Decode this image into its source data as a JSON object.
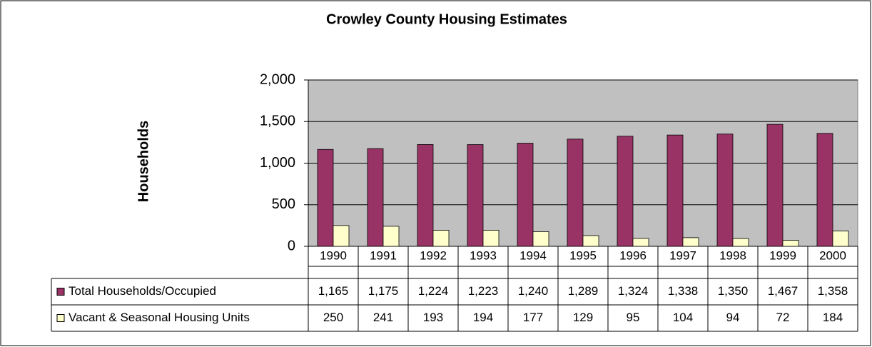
{
  "chart_data": {
    "type": "bar",
    "title": "Crowley County Housing Estimates",
    "y_label": "Households",
    "categories": [
      "1990",
      "1991",
      "1992",
      "1993",
      "1994",
      "1995",
      "1996",
      "1997",
      "1998",
      "1999",
      "2000"
    ],
    "series": [
      {
        "name": "Total Households/Occupied",
        "color": "#993366",
        "values": [
          1165,
          1175,
          1224,
          1223,
          1240,
          1289,
          1324,
          1338,
          1350,
          1467,
          1358
        ],
        "value_labels": [
          "1,165",
          "1,175",
          "1,224",
          "1,223",
          "1,240",
          "1,289",
          "1,324",
          "1,338",
          "1,350",
          "1,467",
          "1,358"
        ]
      },
      {
        "name": "Vacant & Seasonal Housing Units",
        "color": "#ffffcc",
        "values": [
          250,
          241,
          193,
          194,
          177,
          129,
          95,
          104,
          94,
          72,
          184
        ]
      }
    ],
    "ylim": [
      0,
      2000
    ],
    "yticks": [
      0,
      500,
      {
        "value": 1000,
        "label": "1,000"
      },
      {
        "value": 1500,
        "label": "1,500"
      },
      {
        "value": 2000,
        "label": "2,000"
      }
    ],
    "grid": true,
    "plot_background": "#c0c0c0"
  }
}
